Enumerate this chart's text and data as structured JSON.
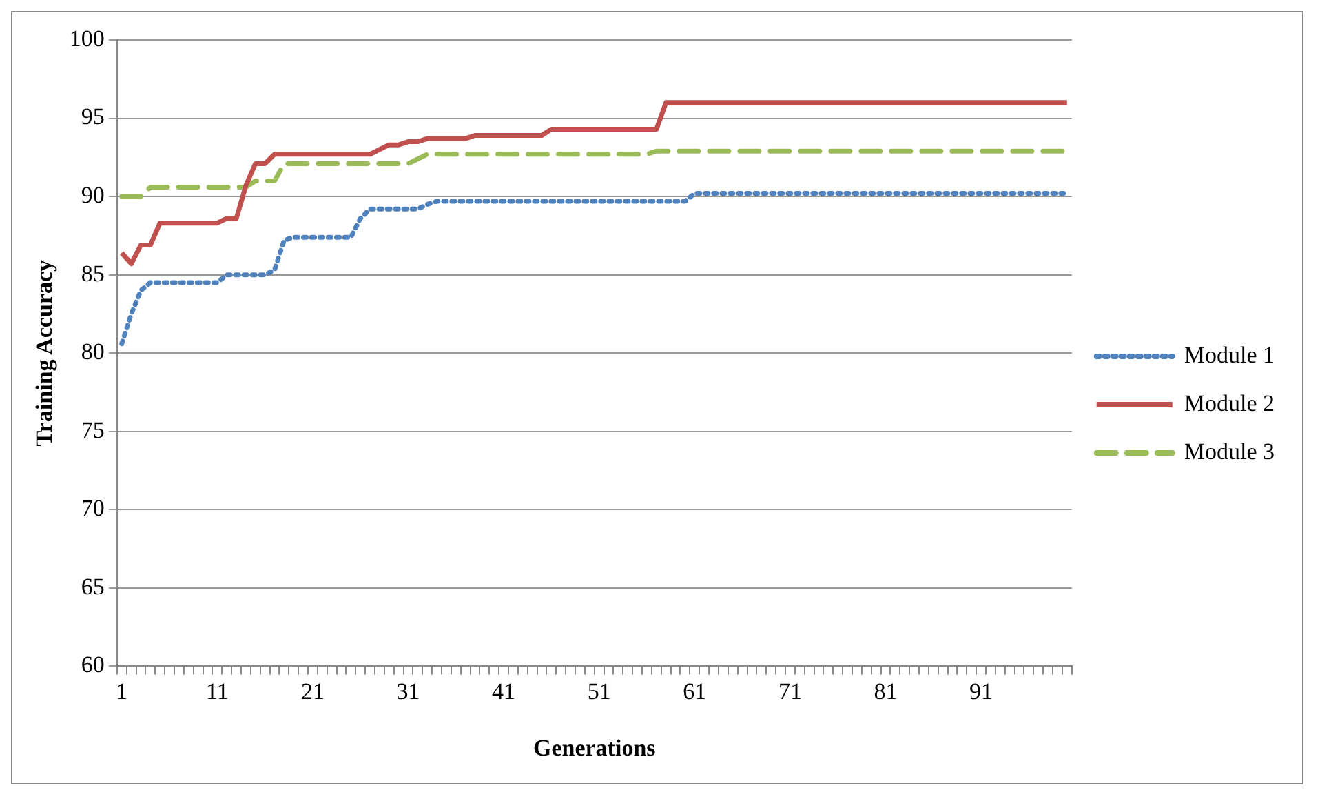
{
  "chart_data": {
    "type": "line",
    "xlabel": "Generations",
    "ylabel": "Training Accuracy",
    "categories": [
      "1",
      null,
      null,
      null,
      null,
      null,
      null,
      null,
      null,
      null,
      "11",
      null,
      null,
      null,
      null,
      null,
      null,
      null,
      null,
      null,
      "21",
      null,
      null,
      null,
      null,
      null,
      null,
      null,
      null,
      null,
      "31",
      null,
      null,
      null,
      null,
      null,
      null,
      null,
      null,
      null,
      "41",
      null,
      null,
      null,
      null,
      null,
      null,
      null,
      null,
      null,
      "51",
      null,
      null,
      null,
      null,
      null,
      null,
      null,
      null,
      null,
      "61",
      null,
      null,
      null,
      null,
      null,
      null,
      null,
      null,
      null,
      "71",
      null,
      null,
      null,
      null,
      null,
      null,
      null,
      null,
      null,
      "81",
      null,
      null,
      null,
      null,
      null,
      null,
      null,
      null,
      null,
      "91",
      null,
      null,
      null,
      null,
      null,
      null,
      null,
      null,
      null
    ],
    "series": [
      {
        "name": "Module 1",
        "color": "#4f81bd",
        "line_style": "dotted",
        "values": [
          80.6,
          82.5,
          84.0,
          84.5,
          84.5,
          84.5,
          84.5,
          84.5,
          84.5,
          84.5,
          84.5,
          85.0,
          85.0,
          85.0,
          85.0,
          85.0,
          85.3,
          87.2,
          87.4,
          87.4,
          87.4,
          87.4,
          87.4,
          87.4,
          87.4,
          88.6,
          89.2,
          89.2,
          89.2,
          89.2,
          89.2,
          89.2,
          89.5,
          89.7,
          89.7,
          89.7,
          89.7,
          89.7,
          89.7,
          89.7,
          89.7,
          89.7,
          89.7,
          89.7,
          89.7,
          89.7,
          89.7,
          89.7,
          89.7,
          89.7,
          89.7,
          89.7,
          89.7,
          89.7,
          89.7,
          89.7,
          89.7,
          89.7,
          89.7,
          89.7,
          90.2,
          90.2,
          90.2,
          90.2,
          90.2,
          90.2,
          90.2,
          90.2,
          90.2,
          90.2,
          90.2,
          90.2,
          90.2,
          90.2,
          90.2,
          90.2,
          90.2,
          90.2,
          90.2,
          90.2,
          90.2,
          90.2,
          90.2,
          90.2,
          90.2,
          90.2,
          90.2,
          90.2,
          90.2,
          90.2,
          90.2,
          90.2,
          90.2,
          90.2,
          90.2,
          90.2,
          90.2,
          90.2,
          90.2,
          90.2
        ]
      },
      {
        "name": "Module 2",
        "color": "#c0504d",
        "line_style": "solid",
        "values": [
          86.4,
          85.7,
          86.9,
          86.9,
          88.3,
          88.3,
          88.3,
          88.3,
          88.3,
          88.3,
          88.3,
          88.6,
          88.6,
          90.7,
          92.1,
          92.1,
          92.7,
          92.7,
          92.7,
          92.7,
          92.7,
          92.7,
          92.7,
          92.7,
          92.7,
          92.7,
          92.7,
          93.0,
          93.3,
          93.3,
          93.5,
          93.5,
          93.7,
          93.7,
          93.7,
          93.7,
          93.7,
          93.9,
          93.9,
          93.9,
          93.9,
          93.9,
          93.9,
          93.9,
          93.9,
          94.3,
          94.3,
          94.3,
          94.3,
          94.3,
          94.3,
          94.3,
          94.3,
          94.3,
          94.3,
          94.3,
          94.3,
          96.0,
          96.0,
          96.0,
          96.0,
          96.0,
          96.0,
          96.0,
          96.0,
          96.0,
          96.0,
          96.0,
          96.0,
          96.0,
          96.0,
          96.0,
          96.0,
          96.0,
          96.0,
          96.0,
          96.0,
          96.0,
          96.0,
          96.0,
          96.0,
          96.0,
          96.0,
          96.0,
          96.0,
          96.0,
          96.0,
          96.0,
          96.0,
          96.0,
          96.0,
          96.0,
          96.0,
          96.0,
          96.0,
          96.0,
          96.0,
          96.0,
          96.0,
          96.0
        ]
      },
      {
        "name": "Module 3",
        "color": "#9bbb59",
        "line_style": "dashed",
        "values": [
          90.0,
          90.0,
          90.0,
          90.6,
          90.6,
          90.6,
          90.6,
          90.6,
          90.6,
          90.6,
          90.6,
          90.6,
          90.6,
          90.6,
          91.0,
          91.0,
          91.0,
          92.1,
          92.1,
          92.1,
          92.1,
          92.1,
          92.1,
          92.1,
          92.1,
          92.1,
          92.1,
          92.1,
          92.1,
          92.1,
          92.1,
          92.4,
          92.7,
          92.7,
          92.7,
          92.7,
          92.7,
          92.7,
          92.7,
          92.7,
          92.7,
          92.7,
          92.7,
          92.7,
          92.7,
          92.7,
          92.7,
          92.7,
          92.7,
          92.7,
          92.7,
          92.7,
          92.7,
          92.7,
          92.7,
          92.7,
          92.9,
          92.9,
          92.9,
          92.9,
          92.9,
          92.9,
          92.9,
          92.9,
          92.9,
          92.9,
          92.9,
          92.9,
          92.9,
          92.9,
          92.9,
          92.9,
          92.9,
          92.9,
          92.9,
          92.9,
          92.9,
          92.9,
          92.9,
          92.9,
          92.9,
          92.9,
          92.9,
          92.9,
          92.9,
          92.9,
          92.9,
          92.9,
          92.9,
          92.9,
          92.9,
          92.9,
          92.9,
          92.9,
          92.9,
          92.9,
          92.9,
          92.9,
          92.9,
          92.9
        ]
      }
    ],
    "ylim": [
      60,
      100
    ],
    "yticks": [
      60,
      65,
      70,
      75,
      80,
      85,
      90,
      95,
      100
    ],
    "grid": "y",
    "legend": "right",
    "marker": "none"
  }
}
